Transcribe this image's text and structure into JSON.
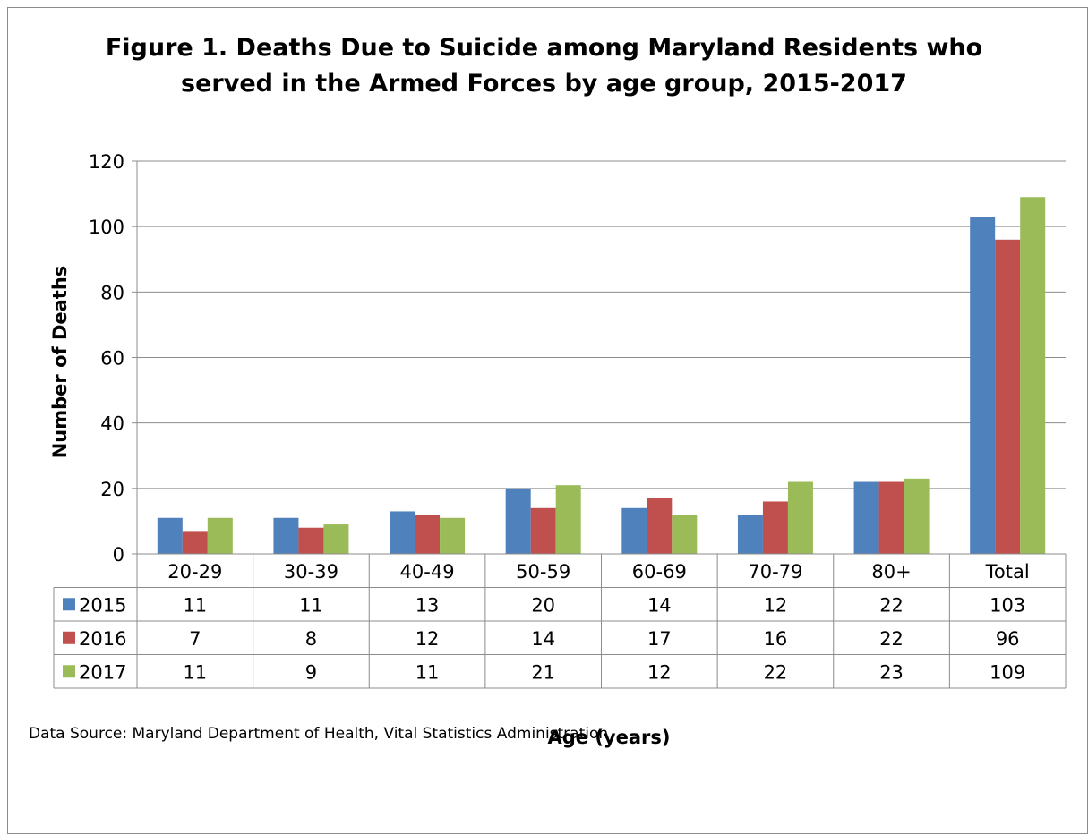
{
  "chart_data": {
    "type": "bar",
    "title_line1": "Figure 1. Deaths Due to Suicide among Maryland Residents who",
    "title_line2": "served in the Armed Forces by age group, 2015-2017",
    "xlabel": "Age (years)",
    "ylabel": "Number of Deaths",
    "ylim": [
      0,
      120
    ],
    "yticks": [
      0,
      20,
      40,
      60,
      80,
      100,
      120
    ],
    "grid": true,
    "legend_placement": "data-table",
    "categories": [
      "20-29",
      "30-39",
      "40-49",
      "50-59",
      "60-69",
      "70-79",
      "80+",
      "Total"
    ],
    "series": [
      {
        "name": "2015",
        "color": "#4f81bd",
        "values": [
          11,
          11,
          13,
          20,
          14,
          12,
          22,
          103
        ]
      },
      {
        "name": "2016",
        "color": "#c0504d",
        "values": [
          7,
          8,
          12,
          14,
          17,
          16,
          22,
          96
        ]
      },
      {
        "name": "2017",
        "color": "#9bbb59",
        "values": [
          11,
          9,
          11,
          21,
          12,
          22,
          23,
          109
        ]
      }
    ],
    "source": "Data Source: Maryland Department of Health, Vital Statistics Administration"
  }
}
